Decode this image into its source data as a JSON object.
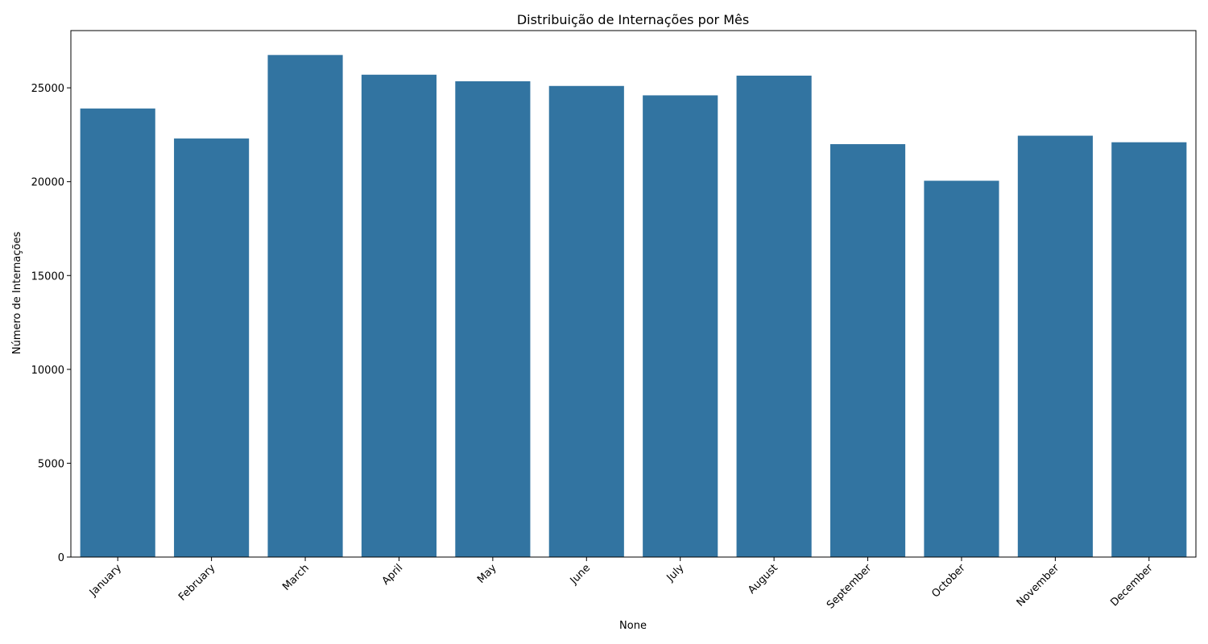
{
  "chart_data": {
    "type": "bar",
    "title": "Distribuição de Internações por Mês",
    "xlabel": "None",
    "ylabel": "Número de Internações",
    "categories": [
      "January",
      "February",
      "March",
      "April",
      "May",
      "June",
      "July",
      "August",
      "September",
      "October",
      "November",
      "December"
    ],
    "values": [
      23900,
      22300,
      26750,
      25700,
      25350,
      25100,
      24600,
      25650,
      22000,
      20050,
      22450,
      22100
    ],
    "ylim": [
      0,
      28050
    ],
    "yticks": [
      0,
      5000,
      10000,
      15000,
      20000,
      25000
    ],
    "bar_color": "#3274a1",
    "grid": false
  }
}
